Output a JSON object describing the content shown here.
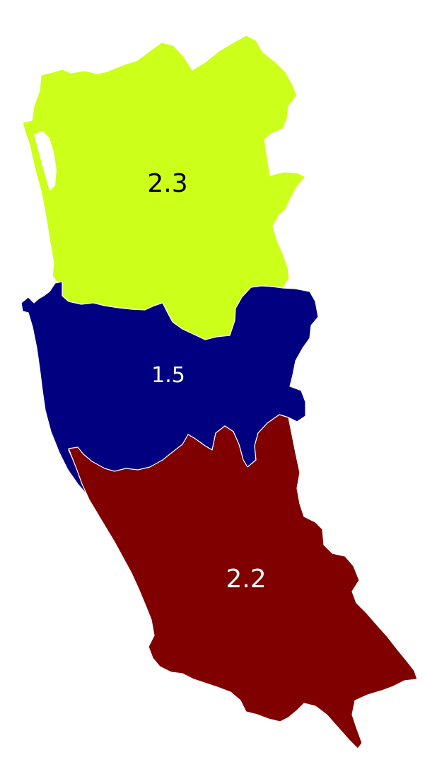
{
  "regions": [
    {
      "id": "north",
      "value_label": "2.3",
      "fill": "#ccff1a",
      "label_color": "#000000"
    },
    {
      "id": "middle",
      "value_label": "1.5",
      "fill": "#000080",
      "label_color": "#ffffff"
    },
    {
      "id": "south",
      "value_label": "2.2",
      "fill": "#800000",
      "label_color": "#ffffff"
    }
  ]
}
